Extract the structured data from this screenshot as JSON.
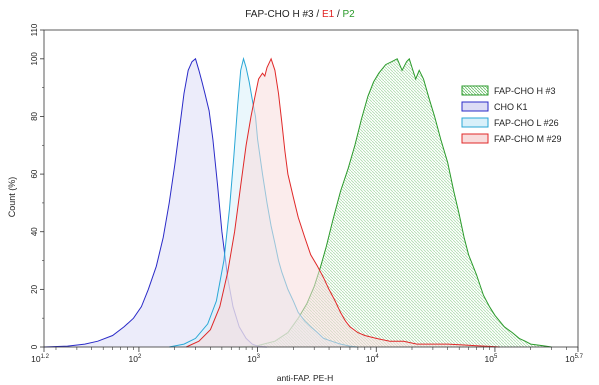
{
  "chart_data": {
    "type": "area",
    "title_parts": [
      {
        "text": "FAP-CHO H #3",
        "color": "#222222"
      },
      {
        "text": " / ",
        "color": "#222222"
      },
      {
        "text": "E1",
        "color": "#e02020"
      },
      {
        "text": " / ",
        "color": "#222222"
      },
      {
        "text": "P2",
        "color": "#2a9a2a"
      }
    ],
    "xlabel": "anti-FAP. PE-H",
    "ylabel": "Count  (%)",
    "x_scale": "log",
    "xlim": [
      15.85,
      501187
    ],
    "ylim": [
      0,
      110
    ],
    "x_tick_labels": [
      {
        "value": 15.85,
        "base": "10",
        "exp": "1.2"
      },
      {
        "value": 100,
        "base": "10",
        "exp": "2"
      },
      {
        "value": 1000,
        "base": "10",
        "exp": "3"
      },
      {
        "value": 10000,
        "base": "10",
        "exp": "4"
      },
      {
        "value": 100000,
        "base": "10",
        "exp": "5"
      },
      {
        "value": 501187,
        "base": "10",
        "exp": "5.7"
      }
    ],
    "y_ticks": [
      0,
      20,
      40,
      60,
      80,
      100,
      110
    ],
    "legend_position": "right",
    "series": [
      {
        "name": "FAP-CHO H #3",
        "stroke": "#2a9a2a",
        "fill": "#dff0dc",
        "hatch": true,
        "points": [
          [
            700,
            0
          ],
          [
            1000,
            0.5
          ],
          [
            1400,
            2
          ],
          [
            1800,
            5
          ],
          [
            2200,
            10
          ],
          [
            2600,
            15
          ],
          [
            3000,
            21
          ],
          [
            3400,
            28
          ],
          [
            3800,
            35
          ],
          [
            4300,
            44
          ],
          [
            5000,
            54
          ],
          [
            5800,
            62
          ],
          [
            6600,
            70
          ],
          [
            7500,
            79
          ],
          [
            8500,
            87
          ],
          [
            9500,
            92
          ],
          [
            10500,
            95
          ],
          [
            12000,
            98
          ],
          [
            13500,
            99
          ],
          [
            15000,
            100
          ],
          [
            16500,
            96
          ],
          [
            18000,
            99
          ],
          [
            19000,
            100
          ],
          [
            20000,
            97
          ],
          [
            21500,
            93
          ],
          [
            23000,
            96
          ],
          [
            25000,
            93
          ],
          [
            28000,
            86
          ],
          [
            31000,
            80
          ],
          [
            35000,
            72
          ],
          [
            40000,
            64
          ],
          [
            45000,
            54
          ],
          [
            50000,
            46
          ],
          [
            55000,
            38
          ],
          [
            60000,
            32
          ],
          [
            70000,
            25
          ],
          [
            80000,
            18
          ],
          [
            90000,
            14
          ],
          [
            100000,
            11
          ],
          [
            120000,
            7
          ],
          [
            140000,
            5
          ],
          [
            160000,
            3
          ],
          [
            180000,
            2
          ],
          [
            200000,
            1
          ],
          [
            250000,
            0.5
          ],
          [
            300000,
            0
          ]
        ]
      },
      {
        "name": "CHO K1",
        "stroke": "#2b2bc8",
        "fill": "#dcdcf5",
        "hatch": false,
        "points": [
          [
            15.85,
            0
          ],
          [
            25,
            0.3
          ],
          [
            35,
            1
          ],
          [
            45,
            2
          ],
          [
            60,
            4
          ],
          [
            75,
            7
          ],
          [
            90,
            10
          ],
          [
            105,
            14
          ],
          [
            120,
            20
          ],
          [
            140,
            28
          ],
          [
            160,
            38
          ],
          [
            180,
            50
          ],
          [
            200,
            63
          ],
          [
            220,
            76
          ],
          [
            240,
            88
          ],
          [
            260,
            96
          ],
          [
            280,
            99
          ],
          [
            300,
            100
          ],
          [
            320,
            96
          ],
          [
            340,
            92
          ],
          [
            360,
            88
          ],
          [
            390,
            82
          ],
          [
            420,
            72
          ],
          [
            460,
            56
          ],
          [
            500,
            40
          ],
          [
            560,
            24
          ],
          [
            620,
            14
          ],
          [
            700,
            7
          ],
          [
            800,
            3
          ],
          [
            900,
            1
          ],
          [
            1000,
            0.3
          ],
          [
            1200,
            0
          ]
        ]
      },
      {
        "name": "FAP-CHO L #26",
        "stroke": "#29a7d6",
        "fill": "#d8f0fa",
        "hatch": false,
        "points": [
          [
            180,
            0
          ],
          [
            240,
            1
          ],
          [
            300,
            3
          ],
          [
            380,
            8
          ],
          [
            450,
            16
          ],
          [
            520,
            30
          ],
          [
            580,
            48
          ],
          [
            630,
            66
          ],
          [
            680,
            84
          ],
          [
            720,
            96
          ],
          [
            760,
            100
          ],
          [
            800,
            97
          ],
          [
            850,
            92
          ],
          [
            900,
            86
          ],
          [
            960,
            80
          ],
          [
            1000,
            72
          ],
          [
            1100,
            60
          ],
          [
            1200,
            50
          ],
          [
            1300,
            42
          ],
          [
            1400,
            36
          ],
          [
            1500,
            30
          ],
          [
            1600,
            26
          ],
          [
            1800,
            20
          ],
          [
            2000,
            16
          ],
          [
            2200,
            12
          ],
          [
            2500,
            9
          ],
          [
            2800,
            7
          ],
          [
            3200,
            5
          ],
          [
            3600,
            3
          ],
          [
            4200,
            2
          ],
          [
            5000,
            1
          ],
          [
            6000,
            0.3
          ],
          [
            7000,
            0
          ]
        ]
      },
      {
        "name": "FAP-CHO M #29",
        "stroke": "#e02828",
        "fill": "#f8dcdc",
        "hatch": false,
        "points": [
          [
            250,
            0
          ],
          [
            320,
            2
          ],
          [
            400,
            6
          ],
          [
            480,
            14
          ],
          [
            560,
            26
          ],
          [
            640,
            40
          ],
          [
            720,
            56
          ],
          [
            800,
            70
          ],
          [
            880,
            80
          ],
          [
            950,
            87
          ],
          [
            1020,
            93
          ],
          [
            1100,
            95
          ],
          [
            1150,
            94
          ],
          [
            1200,
            97
          ],
          [
            1300,
            100
          ],
          [
            1400,
            96
          ],
          [
            1500,
            88
          ],
          [
            1600,
            78
          ],
          [
            1700,
            68
          ],
          [
            1800,
            60
          ],
          [
            2000,
            52
          ],
          [
            2200,
            45
          ],
          [
            2500,
            38
          ],
          [
            2800,
            32
          ],
          [
            3200,
            28
          ],
          [
            3600,
            24
          ],
          [
            4000,
            20
          ],
          [
            4500,
            16
          ],
          [
            5000,
            12
          ],
          [
            5500,
            9
          ],
          [
            6000,
            7
          ],
          [
            7000,
            5
          ],
          [
            8000,
            4
          ],
          [
            10000,
            3
          ],
          [
            13000,
            2
          ],
          [
            17000,
            2
          ],
          [
            22000,
            1
          ],
          [
            30000,
            1
          ],
          [
            40000,
            1
          ],
          [
            55000,
            0.7
          ],
          [
            70000,
            0.4
          ],
          [
            90000,
            0.2
          ],
          [
            110000,
            0
          ]
        ]
      }
    ]
  }
}
